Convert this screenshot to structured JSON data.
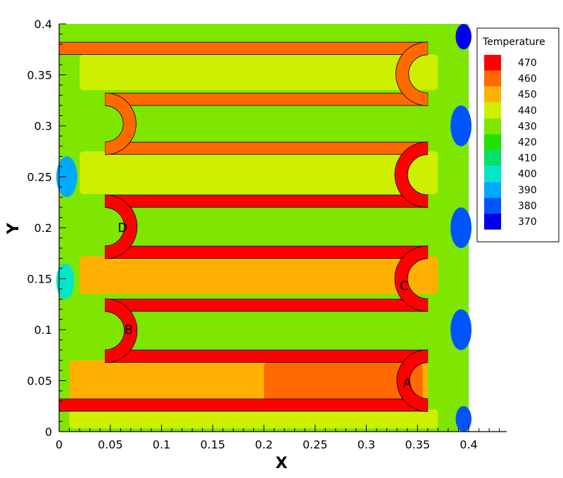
{
  "chart_data": {
    "type": "heatmap",
    "variable": "Temperature",
    "xlabel": "X",
    "ylabel": "Y",
    "xlim": [
      0,
      0.4
    ],
    "ylim": [
      0,
      0.4
    ],
    "x_ticks": [
      "0",
      "0.05",
      "0.1",
      "0.15",
      "0.2",
      "0.25",
      "0.3",
      "0.35",
      "0.4"
    ],
    "y_ticks": [
      "0",
      "0.05",
      "0.1",
      "0.15",
      "0.2",
      "0.25",
      "0.3",
      "0.35",
      "0.4"
    ],
    "legend": {
      "title": "Temperature",
      "placement": "right",
      "levels": [
        {
          "value": 470,
          "label": "470",
          "color": "#ff0000"
        },
        {
          "value": 460,
          "label": "460",
          "color": "#ff6a00"
        },
        {
          "value": 450,
          "label": "450",
          "color": "#ffb000"
        },
        {
          "value": 440,
          "label": "440",
          "color": "#ccf000"
        },
        {
          "value": 430,
          "label": "430",
          "color": "#7ee600"
        },
        {
          "value": 420,
          "label": "420",
          "color": "#22e000"
        },
        {
          "value": 410,
          "label": "410",
          "color": "#00e06a"
        },
        {
          "value": 400,
          "label": "400",
          "color": "#00e6c8"
        },
        {
          "value": 390,
          "label": "390",
          "color": "#00aaff"
        },
        {
          "value": 380,
          "label": "380",
          "color": "#0055ff"
        },
        {
          "value": 370,
          "label": "370",
          "color": "#0000ee"
        }
      ]
    },
    "regions": [
      {
        "x": [
          0,
          0.4
        ],
        "y": [
          0,
          0.4
        ],
        "value": 425
      },
      {
        "x": [
          0.01,
          0.37
        ],
        "y": [
          0.003,
          0.022
        ],
        "value": 435
      },
      {
        "x": [
          0.01,
          0.36
        ],
        "y": [
          0.025,
          0.07
        ],
        "value": 452
      },
      {
        "x": [
          0.2,
          0.355
        ],
        "y": [
          0.03,
          0.068
        ],
        "value": 460
      },
      {
        "x": [
          0.05,
          0.355
        ],
        "y": [
          0.085,
          0.122
        ],
        "value": 426
      },
      {
        "x": [
          0.02,
          0.37
        ],
        "y": [
          0.135,
          0.172
        ],
        "value": 447
      },
      {
        "x": [
          0.05,
          0.355
        ],
        "y": [
          0.183,
          0.222
        ],
        "value": 426
      },
      {
        "x": [
          0.02,
          0.37
        ],
        "y": [
          0.233,
          0.275
        ],
        "value": 442
      },
      {
        "x": [
          0.05,
          0.355
        ],
        "y": [
          0.283,
          0.322
        ],
        "value": 428
      },
      {
        "x": [
          0.02,
          0.37
        ],
        "y": [
          0.335,
          0.37
        ],
        "value": 440
      },
      {
        "x": [
          0,
          0.015
        ],
        "y": [
          0.23,
          0.27
        ],
        "value": 390
      },
      {
        "x": [
          0,
          0.012
        ],
        "y": [
          0.13,
          0.165
        ],
        "value": 398
      },
      {
        "x": [
          0.39,
          0.4
        ],
        "y": [
          0.375,
          0.4
        ],
        "value": 372
      },
      {
        "x": [
          0.385,
          0.4
        ],
        "y": [
          0.28,
          0.32
        ],
        "value": 375
      },
      {
        "x": [
          0.385,
          0.4
        ],
        "y": [
          0.18,
          0.22
        ],
        "value": 375
      },
      {
        "x": [
          0.385,
          0.4
        ],
        "y": [
          0.08,
          0.12
        ],
        "value": 375
      },
      {
        "x": [
          0.39,
          0.4
        ],
        "y": [
          0,
          0.025
        ],
        "value": 380
      }
    ],
    "channel": {
      "value": 470,
      "width": 0.012,
      "segments": [
        {
          "y": 0.026,
          "x_from": 0.0,
          "x_to": 0.36,
          "value": 470
        },
        {
          "y": 0.074,
          "x_from": 0.045,
          "x_to": 0.36,
          "value": 470
        },
        {
          "y": 0.124,
          "x_from": 0.045,
          "x_to": 0.36,
          "value": 470
        },
        {
          "y": 0.176,
          "x_from": 0.045,
          "x_to": 0.36,
          "value": 470
        },
        {
          "y": 0.226,
          "x_from": 0.045,
          "x_to": 0.36,
          "value": 470
        },
        {
          "y": 0.278,
          "x_from": 0.045,
          "x_to": 0.36,
          "value": 462
        },
        {
          "y": 0.326,
          "x_from": 0.045,
          "x_to": 0.36,
          "value": 462
        },
        {
          "y": 0.376,
          "x_from": 0.0,
          "x_to": 0.36,
          "value": 462
        }
      ],
      "bends": [
        {
          "side": "right",
          "y_low": 0.026,
          "y_high": 0.074,
          "value": 470
        },
        {
          "side": "left",
          "y_low": 0.074,
          "y_high": 0.124,
          "value": 470
        },
        {
          "side": "right",
          "y_low": 0.124,
          "y_high": 0.176,
          "value": 470
        },
        {
          "side": "left",
          "y_low": 0.176,
          "y_high": 0.226,
          "value": 470
        },
        {
          "side": "right",
          "y_low": 0.226,
          "y_high": 0.278,
          "value": 465
        },
        {
          "side": "left",
          "y_low": 0.278,
          "y_high": 0.326,
          "value": 462
        },
        {
          "side": "right",
          "y_low": 0.326,
          "y_high": 0.376,
          "value": 462
        }
      ]
    },
    "annotations": [
      {
        "text": "A",
        "x": 0.34,
        "y": 0.048
      },
      {
        "text": "B",
        "x": 0.068,
        "y": 0.1
      },
      {
        "text": "C",
        "x": 0.337,
        "y": 0.143
      },
      {
        "text": "D",
        "x": 0.062,
        "y": 0.2
      }
    ]
  }
}
